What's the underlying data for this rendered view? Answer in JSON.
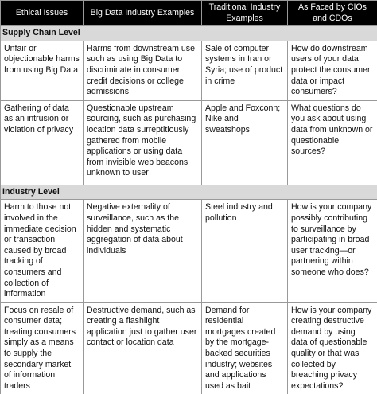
{
  "header": {
    "columns": [
      "Ethical Issues",
      "Big Data Industry Examples",
      "Traditional Industry Examples",
      "As Faced by CIOs and CDOs"
    ]
  },
  "sections": [
    {
      "title": "Supply Chain Level",
      "rows": [
        [
          "Unfair or objectionable harms from using Big Data",
          "Harms from downstream use, such as using Big Data to discriminate in consumer credit decisions or college admissions",
          "Sale of computer systems in Iran or Syria; use of product in crime",
          "How do downstream users of your data protect the consumer data or impact consumers?"
        ],
        [
          "Gathering of data as an intrusion or violation of privacy",
          "Questionable upstream sourcing, such as purchasing location data surreptitiously gathered from mobile applications or using data from invisible web beacons unknown to user",
          "Apple and Foxconn; Nike and sweatshops",
          "What questions do you ask about using data from unknown or questionable sources?"
        ]
      ]
    },
    {
      "title": "Industry Level",
      "rows": [
        [
          "Harm to those not involved in the immediate decision or transaction caused by broad tracking of consumers and collection of information",
          "Negative externality of surveillance, such as the hidden and systematic aggregation of data about individuals",
          "Steel industry and pollution",
          "How is your company possibly contributing to surveillance by participating in broad user tracking—or partnering within someone who does?"
        ],
        [
          "Focus on resale of consumer data; treating consumers simply as a means to supply the secondary market of information traders",
          "Destructive demand, such as creating a flashlight application just to gather user contact or location data",
          "Demand for residential mortgages created by the mortgage-backed securities industry; websites and applications used as bait",
          "How is your company creating destructive demand by using data of questionable quality or that was collected by breaching privacy expectations?"
        ]
      ]
    }
  ]
}
